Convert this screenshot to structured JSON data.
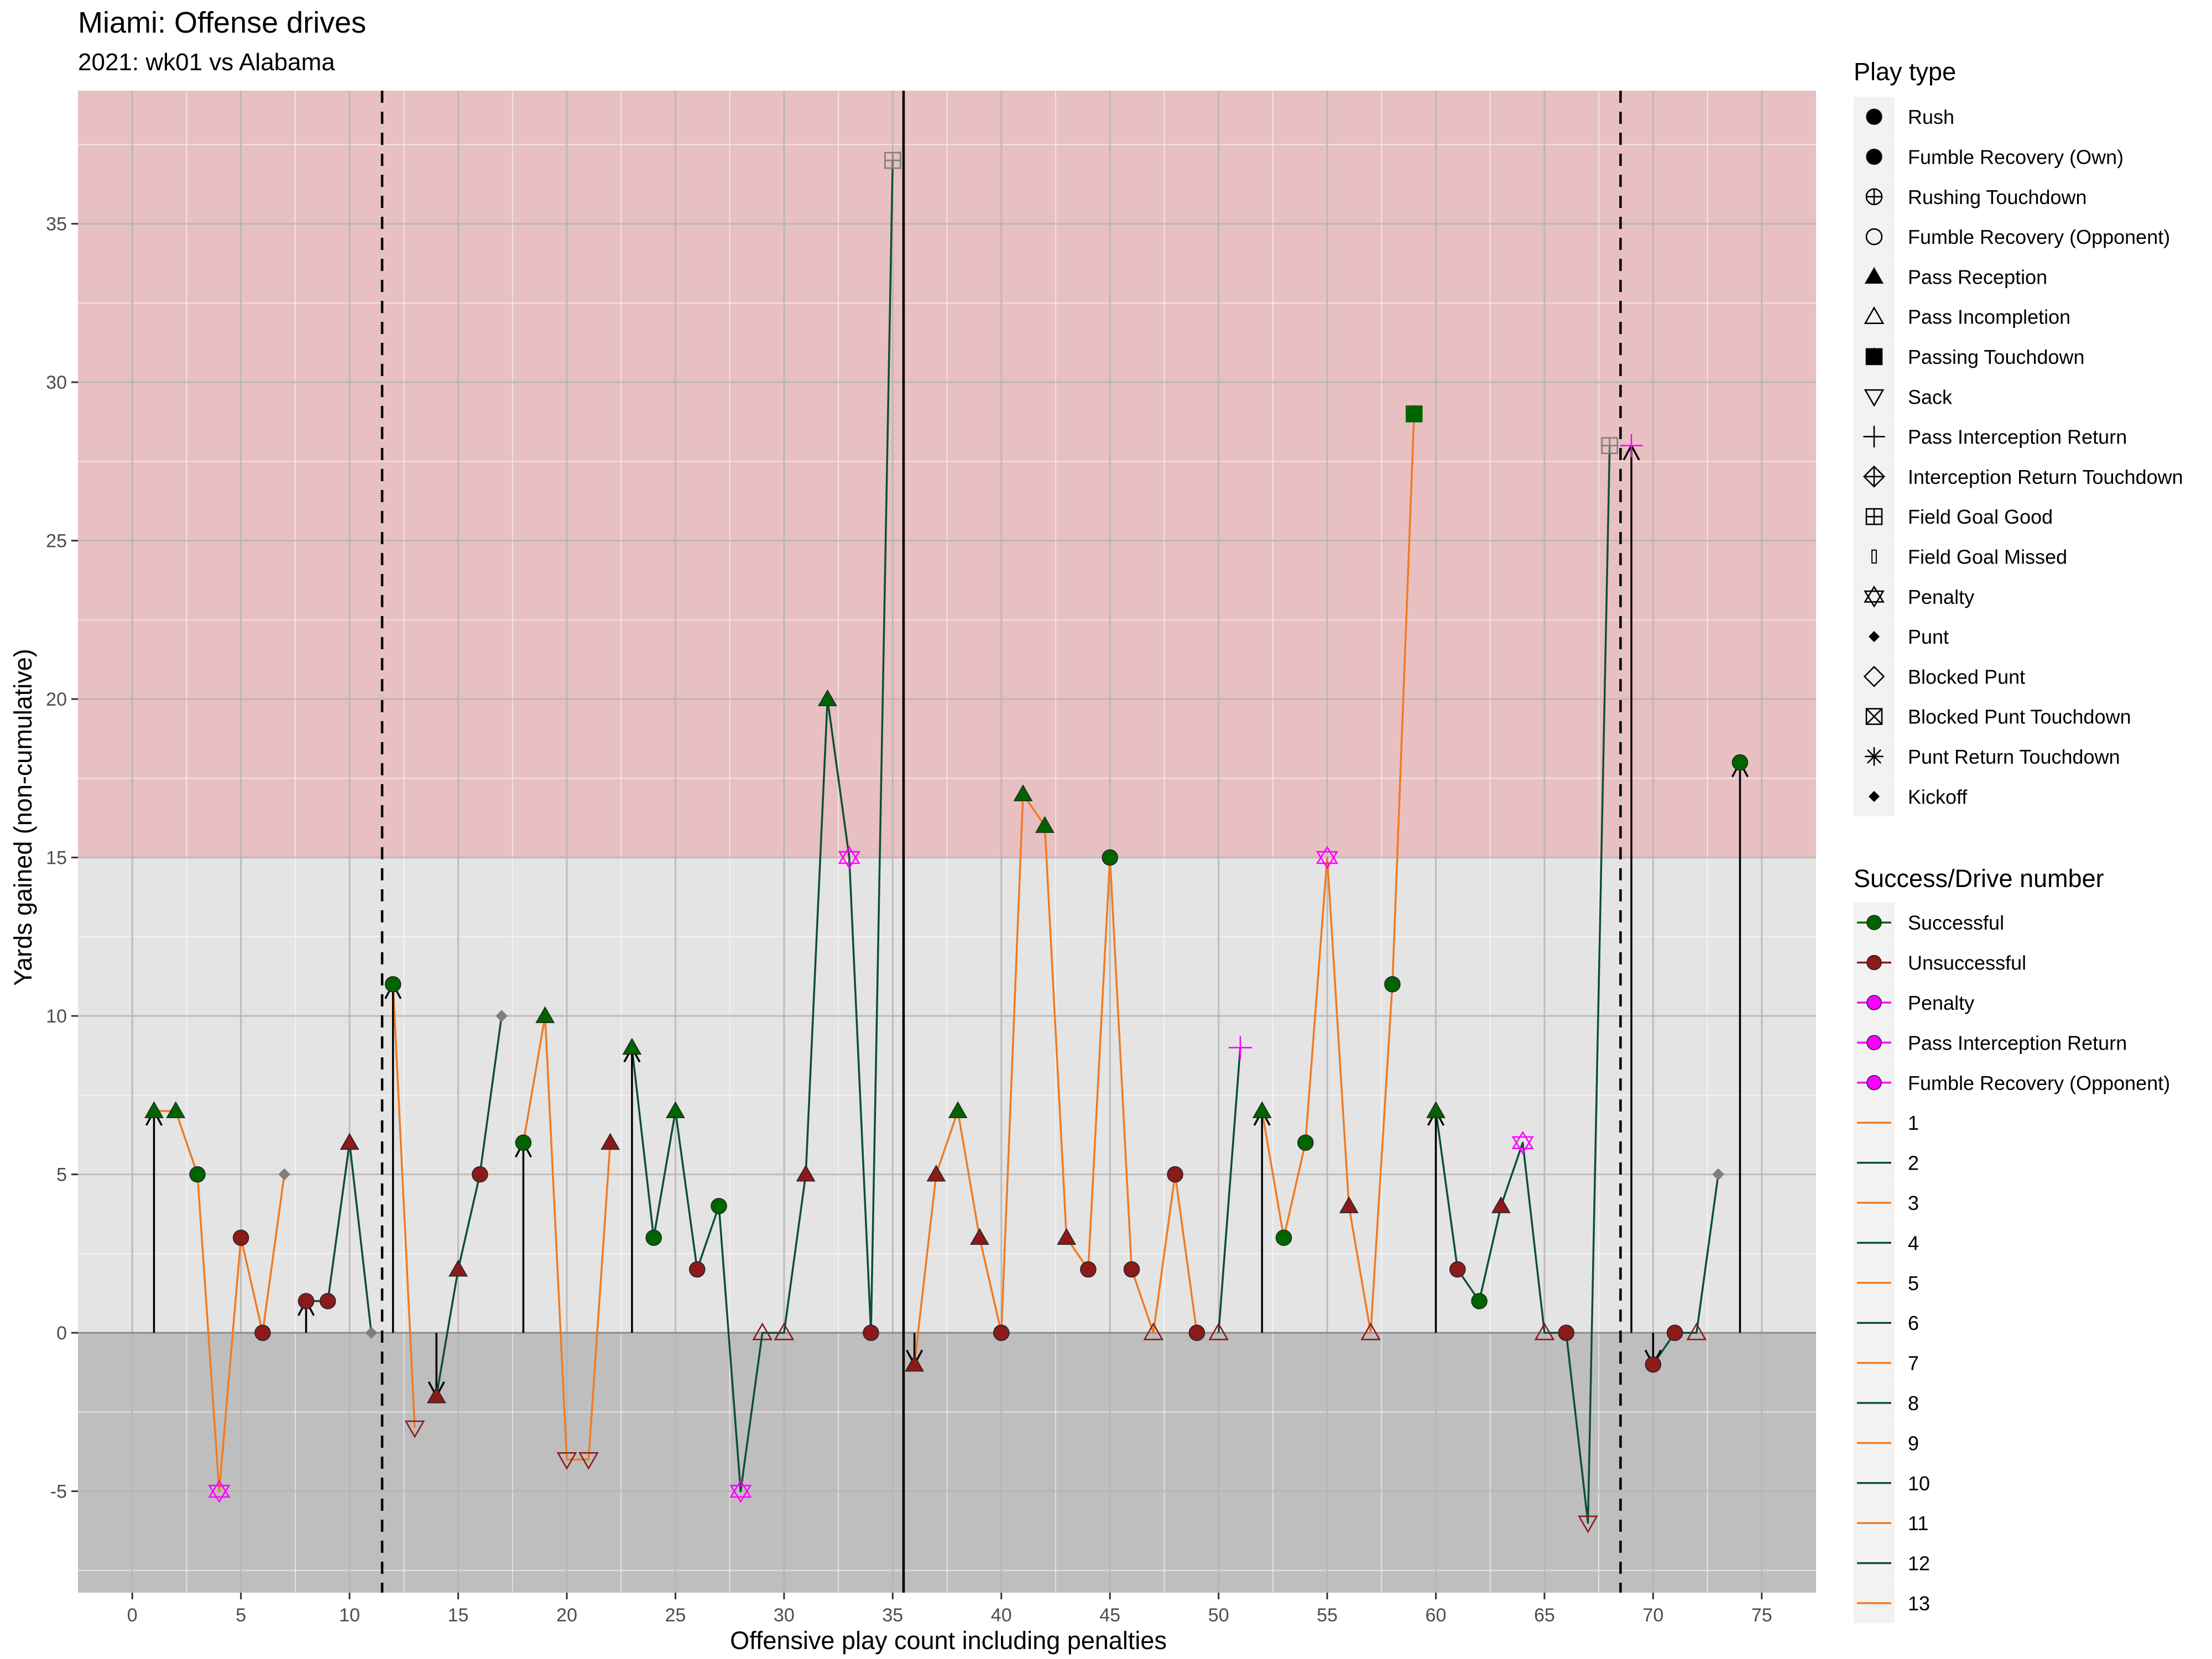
{
  "chart_data": {
    "type": "scatter",
    "title": "Miami: Offense drives",
    "subtitle": "2021: wk01 vs Alabama",
    "xlabel": "Offensive play count including penalties",
    "ylabel": "Yards gained (non-cumulative)",
    "xlim": [
      -2.5,
      77.5
    ],
    "ylim": [
      -8.2,
      39.2
    ],
    "x_ticks": [
      0,
      5,
      10,
      15,
      20,
      25,
      30,
      35,
      40,
      45,
      50,
      55,
      60,
      65,
      70,
      75
    ],
    "y_ticks": [
      -5,
      0,
      5,
      10,
      15,
      20,
      25,
      30,
      35
    ],
    "grid": true,
    "background_bands": [
      {
        "from": 15,
        "to": 39.2,
        "color": "#e8c0c1"
      },
      {
        "from": 0,
        "to": 15,
        "color": "#e4e4e4"
      },
      {
        "from": -8.2,
        "to": 0,
        "color": "#bebebe"
      }
    ],
    "vertical_lines": [
      {
        "x": 11.5,
        "style": "dashed"
      },
      {
        "x": 35.5,
        "style": "solid"
      },
      {
        "x": 68.5,
        "style": "dashed"
      }
    ],
    "first_down_arrows": [
      {
        "x": 1,
        "from": 0,
        "to": 7
      },
      {
        "x": 8,
        "from": 0,
        "to": 1
      },
      {
        "x": 12,
        "from": 0,
        "to": 11
      },
      {
        "x": 14,
        "from": 0,
        "to": -2
      },
      {
        "x": 18,
        "from": 0,
        "to": 6
      },
      {
        "x": 23,
        "from": 0,
        "to": 9
      },
      {
        "x": 36,
        "from": 0,
        "to": -1
      },
      {
        "x": 52,
        "from": 0,
        "to": 7
      },
      {
        "x": 60,
        "from": 0,
        "to": 7
      },
      {
        "x": 69,
        "from": 0,
        "to": 28
      },
      {
        "x": 70,
        "from": 0,
        "to": -1
      },
      {
        "x": 74,
        "from": 0,
        "to": 18
      }
    ],
    "drives": [
      {
        "drive": 1,
        "plays": [
          1,
          2,
          3,
          4,
          5,
          6,
          7
        ]
      },
      {
        "drive": 2,
        "plays": [
          8,
          9,
          10,
          11
        ]
      },
      {
        "drive": 3,
        "plays": [
          12,
          13
        ]
      },
      {
        "drive": 4,
        "plays": [
          14,
          15,
          16,
          17
        ]
      },
      {
        "drive": 5,
        "plays": [
          18,
          19,
          20,
          21,
          22
        ]
      },
      {
        "drive": 6,
        "plays": [
          23,
          24,
          25,
          26,
          27,
          28,
          29,
          30,
          31,
          32,
          33,
          34,
          35
        ]
      },
      {
        "drive": 7,
        "plays": [
          36,
          37,
          38,
          39,
          40,
          41,
          42,
          43,
          44,
          45,
          46,
          47,
          48,
          49
        ]
      },
      {
        "drive": 8,
        "plays": [
          50,
          51
        ]
      },
      {
        "drive": 9,
        "plays": [
          52,
          53,
          54,
          55,
          56,
          57,
          58,
          59
        ]
      },
      {
        "drive": 10,
        "plays": [
          60,
          61,
          62,
          63,
          64,
          65,
          66,
          67,
          68
        ]
      },
      {
        "drive": 11,
        "plays": [
          69
        ]
      },
      {
        "drive": 12,
        "plays": [
          70,
          71,
          72,
          73
        ]
      },
      {
        "drive": 13,
        "plays": [
          74
        ]
      }
    ],
    "points": [
      {
        "x": 1,
        "y": 7,
        "type": "Pass Reception",
        "result": "Successful"
      },
      {
        "x": 2,
        "y": 7,
        "type": "Pass Reception",
        "result": "Successful"
      },
      {
        "x": 3,
        "y": 5,
        "type": "Rush",
        "result": "Successful"
      },
      {
        "x": 4,
        "y": -5,
        "type": "Penalty",
        "result": "Penalty"
      },
      {
        "x": 5,
        "y": 3,
        "type": "Rush",
        "result": "Unsuccessful"
      },
      {
        "x": 6,
        "y": 0,
        "type": "Rush",
        "result": "Unsuccessful"
      },
      {
        "x": 7,
        "y": 5,
        "type": "Punt",
        "result": "Other"
      },
      {
        "x": 8,
        "y": 1,
        "type": "Rush",
        "result": "Unsuccessful"
      },
      {
        "x": 9,
        "y": 1,
        "type": "Rush",
        "result": "Unsuccessful"
      },
      {
        "x": 10,
        "y": 6,
        "type": "Pass Reception",
        "result": "Unsuccessful"
      },
      {
        "x": 11,
        "y": 0,
        "type": "Punt",
        "result": "Other"
      },
      {
        "x": 12,
        "y": 11,
        "type": "Rush",
        "result": "Successful"
      },
      {
        "x": 13,
        "y": -3,
        "type": "Sack",
        "result": "Unsuccessful"
      },
      {
        "x": 14,
        "y": -2,
        "type": "Pass Reception",
        "result": "Unsuccessful"
      },
      {
        "x": 15,
        "y": 2,
        "type": "Pass Reception",
        "result": "Unsuccessful"
      },
      {
        "x": 16,
        "y": 5,
        "type": "Rush",
        "result": "Unsuccessful"
      },
      {
        "x": 17,
        "y": 10,
        "type": "Punt",
        "result": "Other"
      },
      {
        "x": 18,
        "y": 6,
        "type": "Rush",
        "result": "Successful"
      },
      {
        "x": 19,
        "y": 10,
        "type": "Pass Reception",
        "result": "Successful"
      },
      {
        "x": 20,
        "y": -4,
        "type": "Sack",
        "result": "Unsuccessful"
      },
      {
        "x": 21,
        "y": -4,
        "type": "Sack",
        "result": "Unsuccessful"
      },
      {
        "x": 22,
        "y": 6,
        "type": "Pass Reception",
        "result": "Unsuccessful"
      },
      {
        "x": 23,
        "y": 9,
        "type": "Pass Reception",
        "result": "Successful"
      },
      {
        "x": 24,
        "y": 3,
        "type": "Rush",
        "result": "Successful"
      },
      {
        "x": 25,
        "y": 7,
        "type": "Pass Reception",
        "result": "Successful"
      },
      {
        "x": 26,
        "y": 2,
        "type": "Rush",
        "result": "Unsuccessful"
      },
      {
        "x": 27,
        "y": 4,
        "type": "Rush",
        "result": "Successful"
      },
      {
        "x": 28,
        "y": -5,
        "type": "Penalty",
        "result": "Penalty"
      },
      {
        "x": 29,
        "y": 0,
        "type": "Pass Incompletion",
        "result": "Unsuccessful"
      },
      {
        "x": 30,
        "y": 0,
        "type": "Pass Incompletion",
        "result": "Unsuccessful"
      },
      {
        "x": 31,
        "y": 5,
        "type": "Pass Reception",
        "result": "Unsuccessful"
      },
      {
        "x": 32,
        "y": 20,
        "type": "Pass Reception",
        "result": "Successful"
      },
      {
        "x": 33,
        "y": 15,
        "type": "Penalty",
        "result": "Penalty"
      },
      {
        "x": 34,
        "y": 0,
        "type": "Rush",
        "result": "Unsuccessful"
      },
      {
        "x": 35,
        "y": 37,
        "type": "Field Goal Good",
        "result": "Other"
      },
      {
        "x": 36,
        "y": -1,
        "type": "Pass Reception",
        "result": "Unsuccessful"
      },
      {
        "x": 37,
        "y": 5,
        "type": "Pass Reception",
        "result": "Unsuccessful"
      },
      {
        "x": 38,
        "y": 7,
        "type": "Pass Reception",
        "result": "Successful"
      },
      {
        "x": 39,
        "y": 3,
        "type": "Pass Reception",
        "result": "Unsuccessful"
      },
      {
        "x": 40,
        "y": 0,
        "type": "Rush",
        "result": "Unsuccessful"
      },
      {
        "x": 41,
        "y": 17,
        "type": "Pass Reception",
        "result": "Successful"
      },
      {
        "x": 42,
        "y": 16,
        "type": "Pass Reception",
        "result": "Successful"
      },
      {
        "x": 43,
        "y": 3,
        "type": "Pass Reception",
        "result": "Unsuccessful"
      },
      {
        "x": 44,
        "y": 2,
        "type": "Rush",
        "result": "Unsuccessful"
      },
      {
        "x": 45,
        "y": 15,
        "type": "Rush",
        "result": "Successful"
      },
      {
        "x": 46,
        "y": 2,
        "type": "Rush",
        "result": "Unsuccessful"
      },
      {
        "x": 47,
        "y": 0,
        "type": "Pass Incompletion",
        "result": "Unsuccessful"
      },
      {
        "x": 48,
        "y": 5,
        "type": "Rush",
        "result": "Unsuccessful"
      },
      {
        "x": 49,
        "y": 0,
        "type": "Rush",
        "result": "Unsuccessful"
      },
      {
        "x": 50,
        "y": 0,
        "type": "Pass Incompletion",
        "result": "Unsuccessful"
      },
      {
        "x": 51,
        "y": 9,
        "type": "Pass Interception Return",
        "result": "Pass Interception Return"
      },
      {
        "x": 52,
        "y": 7,
        "type": "Pass Reception",
        "result": "Successful"
      },
      {
        "x": 53,
        "y": 3,
        "type": "Rush",
        "result": "Successful"
      },
      {
        "x": 54,
        "y": 6,
        "type": "Rush",
        "result": "Successful"
      },
      {
        "x": 55,
        "y": 15,
        "type": "Penalty",
        "result": "Penalty"
      },
      {
        "x": 56,
        "y": 4,
        "type": "Pass Reception",
        "result": "Unsuccessful"
      },
      {
        "x": 57,
        "y": 0,
        "type": "Pass Incompletion",
        "result": "Unsuccessful"
      },
      {
        "x": 58,
        "y": 11,
        "type": "Rush",
        "result": "Successful"
      },
      {
        "x": 59,
        "y": 29,
        "type": "Passing Touchdown",
        "result": "Successful"
      },
      {
        "x": 60,
        "y": 7,
        "type": "Pass Reception",
        "result": "Successful"
      },
      {
        "x": 61,
        "y": 2,
        "type": "Rush",
        "result": "Unsuccessful"
      },
      {
        "x": 62,
        "y": 1,
        "type": "Rush",
        "result": "Successful"
      },
      {
        "x": 63,
        "y": 4,
        "type": "Pass Reception",
        "result": "Unsuccessful"
      },
      {
        "x": 64,
        "y": 6,
        "type": "Penalty",
        "result": "Penalty"
      },
      {
        "x": 65,
        "y": 0,
        "type": "Pass Incompletion",
        "result": "Unsuccessful"
      },
      {
        "x": 66,
        "y": 0,
        "type": "Rush",
        "result": "Unsuccessful"
      },
      {
        "x": 67,
        "y": -6,
        "type": "Sack",
        "result": "Unsuccessful"
      },
      {
        "x": 68,
        "y": 28,
        "type": "Field Goal Good",
        "result": "Other"
      },
      {
        "x": 69,
        "y": 28,
        "type": "Pass Interception Return",
        "result": "Pass Interception Return"
      },
      {
        "x": 70,
        "y": -1,
        "type": "Rush",
        "result": "Unsuccessful"
      },
      {
        "x": 71,
        "y": 0,
        "type": "Rush",
        "result": "Unsuccessful"
      },
      {
        "x": 72,
        "y": 0,
        "type": "Pass Incompletion",
        "result": "Unsuccessful"
      },
      {
        "x": 73,
        "y": 5,
        "type": "Punt",
        "result": "Other"
      },
      {
        "x": 74,
        "y": 18,
        "type": "Rush",
        "result": "Successful"
      }
    ],
    "colors": {
      "Successful": "#006400",
      "Unsuccessful": "#8b1a1a",
      "Penalty": "#ff00ff",
      "Pass Interception Return": "#ff00ff",
      "Fumble Recovery (Opponent)": "#ff00ff",
      "Other": "#7f7f7f",
      "drive_odd": "#f07b22",
      "drive_even": "#0b4f35"
    },
    "legend_placement": "right",
    "legend": {
      "play_type_title": "Play type",
      "play_types": [
        {
          "label": "Rush",
          "shape": "circle-filled"
        },
        {
          "label": "Fumble Recovery (Own)",
          "shape": "circle-filled"
        },
        {
          "label": "Rushing Touchdown",
          "shape": "circle-plus"
        },
        {
          "label": "Fumble Recovery (Opponent)",
          "shape": "circle-open"
        },
        {
          "label": "Pass Reception",
          "shape": "triangle-filled"
        },
        {
          "label": "Pass Incompletion",
          "shape": "triangle-open"
        },
        {
          "label": "Passing Touchdown",
          "shape": "square-triangle"
        },
        {
          "label": "Sack",
          "shape": "triangle-down-open"
        },
        {
          "label": "Pass Interception Return",
          "shape": "plus"
        },
        {
          "label": "Interception Return Touchdown",
          "shape": "diamond-plus"
        },
        {
          "label": "Field Goal Good",
          "shape": "square-plus"
        },
        {
          "label": "Field Goal Missed",
          "shape": "rect-thin"
        },
        {
          "label": "Penalty",
          "shape": "star-of-david"
        },
        {
          "label": "Punt",
          "shape": "diamond-filled"
        },
        {
          "label": "Blocked Punt",
          "shape": "diamond-open"
        },
        {
          "label": "Blocked Punt Touchdown",
          "shape": "square-x"
        },
        {
          "label": "Punt Return Touchdown",
          "shape": "asterisk"
        },
        {
          "label": "Kickoff",
          "shape": "diamond-filled"
        }
      ],
      "success_title": "Success/Drive number",
      "success_items": [
        {
          "label": "Successful",
          "color": "#006400"
        },
        {
          "label": "Unsuccessful",
          "color": "#8b1a1a"
        },
        {
          "label": "Penalty",
          "color": "#ff00ff"
        },
        {
          "label": "Pass Interception Return",
          "color": "#ff00ff"
        },
        {
          "label": "Fumble Recovery (Opponent)",
          "color": "#ff00ff"
        },
        {
          "label": "1",
          "color": "#f07b22"
        },
        {
          "label": "2",
          "color": "#0b4f35"
        },
        {
          "label": "3",
          "color": "#f07b22"
        },
        {
          "label": "4",
          "color": "#0b4f35"
        },
        {
          "label": "5",
          "color": "#f07b22"
        },
        {
          "label": "6",
          "color": "#0b4f35"
        },
        {
          "label": "7",
          "color": "#f07b22"
        },
        {
          "label": "8",
          "color": "#0b4f35"
        },
        {
          "label": "9",
          "color": "#f07b22"
        },
        {
          "label": "10",
          "color": "#0b4f35"
        },
        {
          "label": "11",
          "color": "#f07b22"
        },
        {
          "label": "12",
          "color": "#0b4f35"
        },
        {
          "label": "13",
          "color": "#f07b22"
        }
      ]
    }
  }
}
